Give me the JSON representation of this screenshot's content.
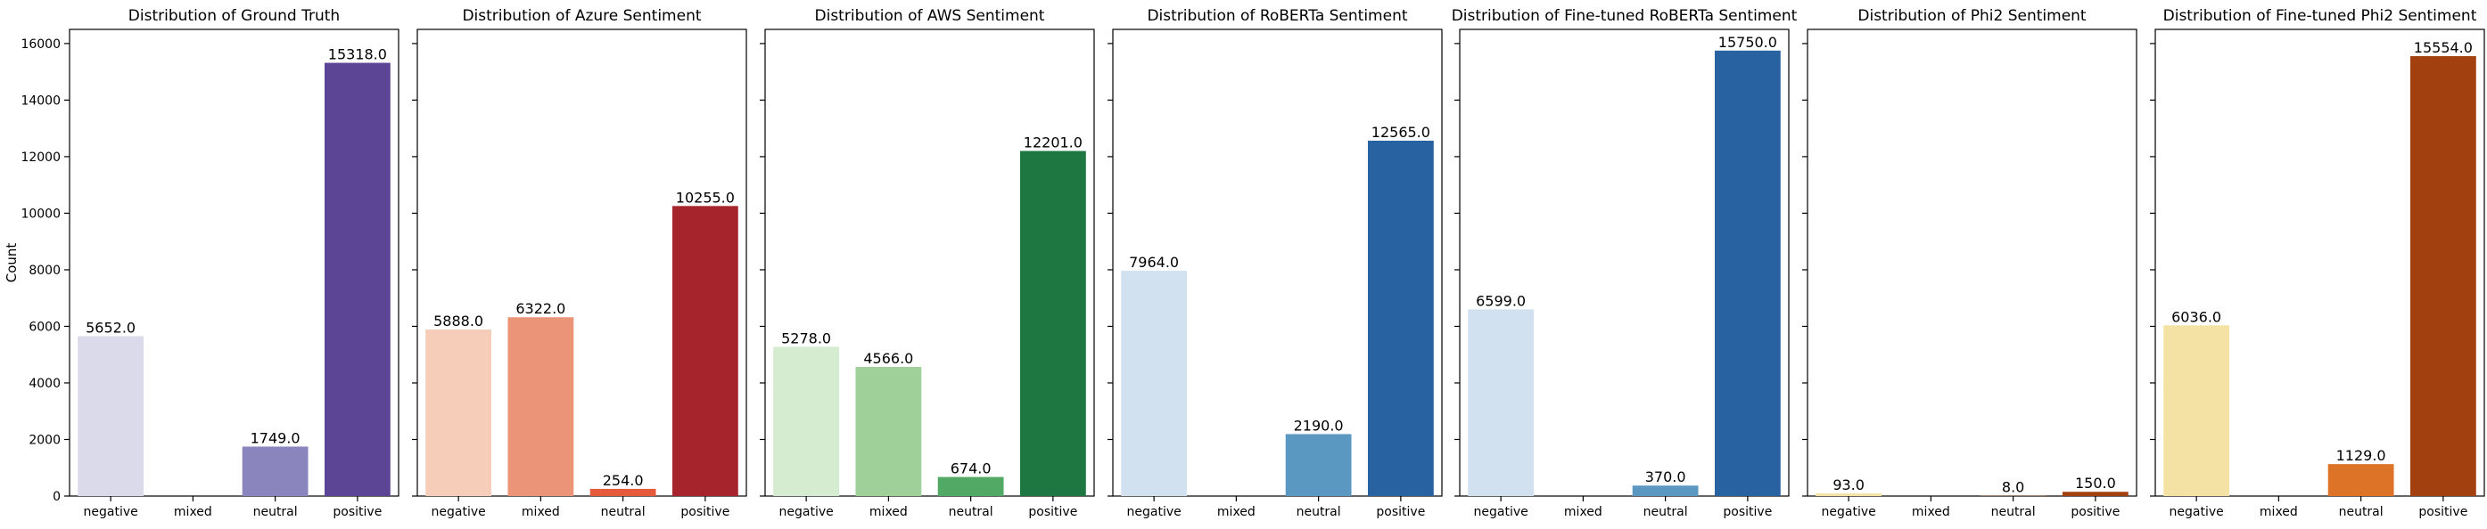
{
  "figure": {
    "ylabel": "Count"
  },
  "chart_data": [
    {
      "type": "bar",
      "title": "Distribution of Ground Truth",
      "categories": [
        "negative",
        "mixed",
        "neutral",
        "positive"
      ],
      "values": [
        5652.0,
        0,
        1749.0,
        15318.0
      ],
      "labels": [
        "5652.0",
        null,
        "1749.0",
        "15318.0"
      ],
      "colors": [
        "#dadaeb",
        "#bcbddc",
        "#8b85bd",
        "#5d4595"
      ],
      "ylim": [
        0,
        16500
      ],
      "yticks": [
        0,
        2000,
        4000,
        6000,
        8000,
        10000,
        12000,
        14000,
        16000
      ],
      "ylabel": "Count",
      "grid": false
    },
    {
      "type": "bar",
      "title": "Distribution of Azure Sentiment",
      "categories": [
        "negative",
        "mixed",
        "neutral",
        "positive"
      ],
      "values": [
        5888.0,
        6322.0,
        254.0,
        10255.0
      ],
      "labels": [
        "5888.0",
        "6322.0",
        "254.0",
        "10255.0"
      ],
      "colors": [
        "#f5cdb9",
        "#ec9478",
        "#e65a3c",
        "#a6252d"
      ],
      "ylim": [
        0,
        16500
      ],
      "grid": false
    },
    {
      "type": "bar",
      "title": "Distribution of AWS Sentiment",
      "categories": [
        "negative",
        "mixed",
        "neutral",
        "positive"
      ],
      "values": [
        5278.0,
        4566.0,
        674.0,
        12201.0
      ],
      "labels": [
        "5278.0",
        "4566.0",
        "674.0",
        "12201.0"
      ],
      "colors": [
        "#d5ecd0",
        "#9fd09a",
        "#52a965",
        "#1e7640"
      ],
      "ylim": [
        0,
        16500
      ],
      "grid": false
    },
    {
      "type": "bar",
      "title": "Distribution of RoBERTa Sentiment",
      "categories": [
        "negative",
        "mixed",
        "neutral",
        "positive"
      ],
      "values": [
        7964.0,
        0,
        2190.0,
        12565.0
      ],
      "labels": [
        "7964.0",
        null,
        "2190.0",
        "12565.0"
      ],
      "colors": [
        "#d1e1ef",
        "#a9cce3",
        "#5a97c1",
        "#2862a0"
      ],
      "ylim": [
        0,
        16500
      ],
      "grid": false
    },
    {
      "type": "bar",
      "title": "Distribution of Fine-tuned RoBERTa Sentiment",
      "categories": [
        "negative",
        "mixed",
        "neutral",
        "positive"
      ],
      "values": [
        6599.0,
        0,
        370.0,
        15750.0
      ],
      "labels": [
        "6599.0",
        null,
        "370.0",
        "15750.0"
      ],
      "colors": [
        "#d1e1ef",
        "#a9cce3",
        "#5a97c1",
        "#2862a0"
      ],
      "ylim": [
        0,
        16500
      ],
      "grid": false
    },
    {
      "type": "bar",
      "title": "Distribution of Phi2 Sentiment",
      "categories": [
        "negative",
        "mixed",
        "neutral",
        "positive"
      ],
      "values": [
        93.0,
        0,
        8.0,
        150.0
      ],
      "labels": [
        "93.0",
        null,
        "8.0",
        "150.0"
      ],
      "colors": [
        "#f4e2a4",
        "#f2b26c",
        "#dc7327",
        "#a3400f"
      ],
      "ylim": [
        0,
        16500
      ],
      "grid": false
    },
    {
      "type": "bar",
      "title": "Distribution of Fine-tuned Phi2 Sentiment",
      "categories": [
        "negative",
        "mixed",
        "neutral",
        "positive"
      ],
      "values": [
        6036.0,
        0,
        1129.0,
        15554.0
      ],
      "labels": [
        "6036.0",
        null,
        "1129.0",
        "15554.0"
      ],
      "colors": [
        "#f4e2a4",
        "#f2b26c",
        "#dc7327",
        "#a3400f"
      ],
      "ylim": [
        0,
        16500
      ],
      "grid": false
    }
  ]
}
